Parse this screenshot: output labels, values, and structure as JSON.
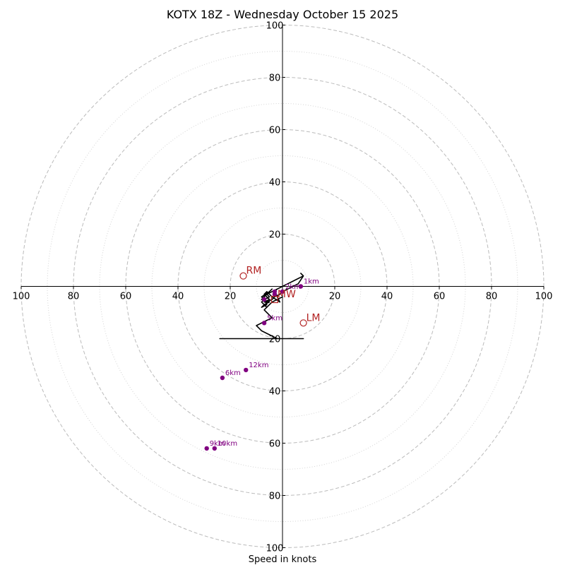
{
  "chart_data": {
    "type": "hodograph",
    "title": "KOTX 18Z - Wednesday October 15 2025",
    "xlabel": "Speed in knots",
    "colors": {
      "trace": "#000000",
      "markers": "#800080",
      "storm_motion": "#b22222",
      "grid": "#bbbbbb"
    },
    "axis": {
      "range": [
        -100,
        100
      ],
      "ticks": [
        100,
        80,
        60,
        40,
        20
      ],
      "major_ring_step": 20,
      "minor_ring_step": 10,
      "grid": true
    },
    "hodograph_trace": {
      "u": [
        0,
        0,
        -2,
        -3,
        -2,
        -1,
        -4,
        -5,
        -6,
        -7,
        -6,
        -5,
        -7,
        -6,
        -4,
        -3,
        -1,
        0,
        2,
        4,
        6,
        8,
        7,
        8,
        6,
        4,
        2,
        0,
        -2,
        -4,
        -6,
        -5,
        -7,
        -8,
        -7,
        -8,
        -6,
        -7,
        -8,
        -6,
        -5,
        -4,
        -5,
        -8,
        -6,
        -8,
        -5,
        -7,
        -6,
        -4,
        -2,
        0,
        -2,
        -4,
        -6,
        -7,
        -6,
        -5,
        -4,
        -6,
        -8,
        -10,
        -9,
        -8,
        -6,
        -4,
        -2,
        -5,
        -8,
        -11,
        -14,
        -7,
        -6,
        -4,
        -2,
        0,
        4,
        6,
        7,
        8,
        7,
        8,
        4,
        0,
        -4,
        -8,
        -12,
        -12,
        -14,
        -12,
        -8,
        -4,
        0,
        4,
        0,
        -2,
        -4,
        -8,
        -12,
        -14,
        -12,
        -13,
        -15,
        -12,
        -11,
        -10,
        -11,
        -12,
        -8,
        -10,
        -12,
        -14,
        -16,
        -18,
        -20,
        -22,
        -21,
        -22,
        -23,
        -24,
        -23,
        -22,
        -21,
        -20,
        -14,
        -16,
        -18,
        -19,
        -16,
        -14,
        -15,
        -12,
        -8,
        -4,
        0,
        -10,
        -16,
        -20,
        -19,
        -18,
        -20,
        -17,
        -14,
        -12,
        -10,
        -9,
        -8,
        -6,
        -4,
        -2,
        0,
        2,
        0,
        -2,
        -4,
        -6,
        -4,
        -2,
        0,
        2
      ],
      "v": [
        0,
        0,
        -1,
        -2,
        -4,
        -6,
        -4,
        -3,
        -2,
        -3,
        -4,
        -5,
        -6,
        -6,
        -5,
        -4,
        -3,
        -2,
        -1,
        0,
        1,
        4,
        5,
        4,
        3,
        2,
        1,
        0,
        -1,
        -2,
        -3,
        -4,
        -5,
        -6,
        -7,
        -8,
        -7,
        -5,
        -4,
        -3,
        -2,
        -1,
        -2,
        -4,
        -3,
        -5,
        -6,
        -7,
        -8,
        -6,
        -5,
        -4,
        -5,
        -6,
        -8,
        -9,
        -10,
        -11,
        -12,
        -13,
        -14,
        -15,
        -16,
        -17,
        -18,
        -19,
        -20,
        -20,
        -20,
        -20,
        -20,
        -20,
        -20,
        -20,
        -20,
        -20,
        -20,
        -20,
        -20,
        -20,
        -20,
        -20,
        -20,
        -20,
        -20,
        -20,
        -20,
        -20,
        -20,
        -20,
        -20,
        -20,
        -20,
        -20,
        -20,
        -20,
        -20,
        -20,
        -20,
        -20,
        -20,
        -20,
        -20,
        -20,
        -20,
        -20,
        -20,
        -20,
        -20,
        -20,
        -20,
        -20,
        -20,
        -20,
        -20,
        -20,
        -20,
        -20,
        -20,
        -20,
        -20,
        -20,
        -20,
        -20,
        -20,
        -20,
        -20,
        -20,
        -20,
        -20,
        -20,
        -20,
        -20,
        -20,
        -20,
        -20,
        -20,
        -20,
        -20,
        -20,
        -20,
        -20,
        -20,
        -20,
        -20,
        -20,
        -20,
        -20,
        -20,
        -20,
        -20,
        -20,
        -20,
        -20,
        -20,
        -20,
        -20,
        -20,
        -20,
        -20
      ]
    },
    "height_markers": [
      {
        "label": "1km",
        "u": 7,
        "v": 0
      },
      {
        "label": "2km",
        "u": 0,
        "v": -2
      },
      {
        "label": "",
        "u": -3,
        "v": -2
      },
      {
        "label": "",
        "u": -3,
        "v": -3
      },
      {
        "label": "",
        "u": -7,
        "v": -5
      },
      {
        "label": "5km",
        "u": -7,
        "v": -14
      },
      {
        "label": "6km",
        "u": -23,
        "v": -35
      },
      {
        "label": "9km",
        "u": -29,
        "v": -62
      },
      {
        "label": "10km",
        "u": -26,
        "v": -62
      },
      {
        "label": "12km",
        "u": -14,
        "v": -32
      }
    ],
    "storm_motion": [
      {
        "label": "RM",
        "u": -15,
        "v": 4,
        "marker": "circle"
      },
      {
        "label": "LM",
        "u": 8,
        "v": -14,
        "marker": "circle"
      },
      {
        "label": "MW",
        "u": -3,
        "v": -5,
        "marker": "square"
      }
    ]
  }
}
